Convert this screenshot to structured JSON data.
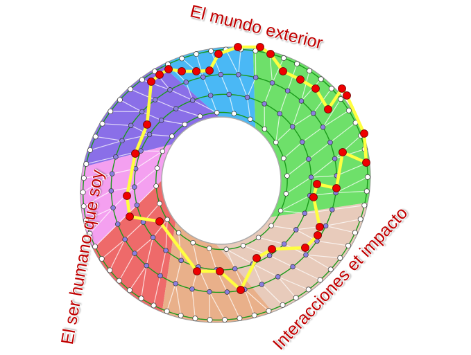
{
  "labels": {
    "top": "El mundo exterior",
    "left": "El ser humano que soy",
    "bottom_right": "Interacciones et impacto"
  },
  "colors": {
    "label": "#c00000",
    "ring_line": "#1a9a1a",
    "path_line": "#ffff40",
    "path_node": "#ee0000",
    "inner_node": "#8a7fe0",
    "outer_node": "#ffffff",
    "sectors": [
      "#4ab8f5",
      "#8a6fe8",
      "#f4a0f0",
      "#ee6a6a",
      "#e9b08a",
      "#e8cbbb",
      "#6ee06a"
    ]
  }
}
